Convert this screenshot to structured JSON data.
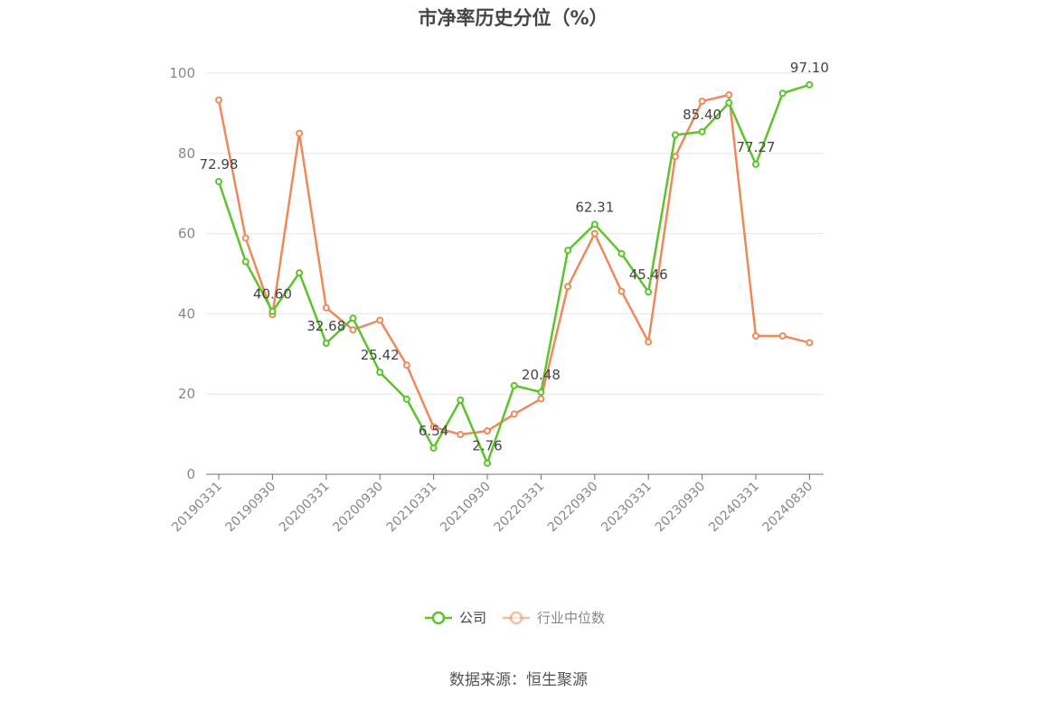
{
  "chart_data": {
    "type": "line",
    "title": "市净率历史分位（%）",
    "xlabel": "",
    "ylabel": "",
    "ylim": [
      0,
      100
    ],
    "yticks": [
      0,
      20,
      40,
      60,
      80,
      100
    ],
    "grid": true,
    "legend_position": "bottom",
    "x": [
      "20190331",
      "20190630",
      "20190930",
      "20191231",
      "20200331",
      "20200630",
      "20200930",
      "20201231",
      "20210331",
      "20210630",
      "20210930",
      "20211231",
      "20220331",
      "20220630",
      "20220930",
      "20221231",
      "20230331",
      "20230630",
      "20230930",
      "20231231",
      "20240331",
      "20240630",
      "20240830"
    ],
    "x_tick_labels": [
      "20190331",
      "20190930",
      "20200331",
      "20200930",
      "20210331",
      "20210930",
      "20220331",
      "20220930",
      "20230331",
      "20230930",
      "20240331",
      "20240830"
    ],
    "series": [
      {
        "name": "公司",
        "color": "#5cc42a",
        "values": [
          72.98,
          53.0,
          40.6,
          50.2,
          32.68,
          38.9,
          25.42,
          18.7,
          6.54,
          18.5,
          2.76,
          22.1,
          20.48,
          55.8,
          62.31,
          55.0,
          45.46,
          84.6,
          85.4,
          92.6,
          77.27,
          95.0,
          97.1
        ],
        "labels": {
          "0": "72.98",
          "2": "40.60",
          "4": "32.68",
          "6": "25.42",
          "8": "6.54",
          "10": "2.76",
          "12": "20.48",
          "14": "62.31",
          "16": "45.46",
          "18": "85.40",
          "20": "77.27",
          "22": "97.10"
        }
      },
      {
        "name": "行业中位数",
        "color": "#f0895a",
        "values": [
          93.3,
          58.9,
          39.8,
          85.0,
          41.5,
          36.0,
          38.4,
          27.2,
          11.8,
          9.9,
          10.8,
          15.0,
          18.8,
          46.8,
          60.0,
          45.6,
          33.0,
          79.2,
          93.0,
          94.6,
          34.5,
          34.5,
          32.8
        ]
      }
    ]
  },
  "source_text": "数据来源：恒生聚源"
}
